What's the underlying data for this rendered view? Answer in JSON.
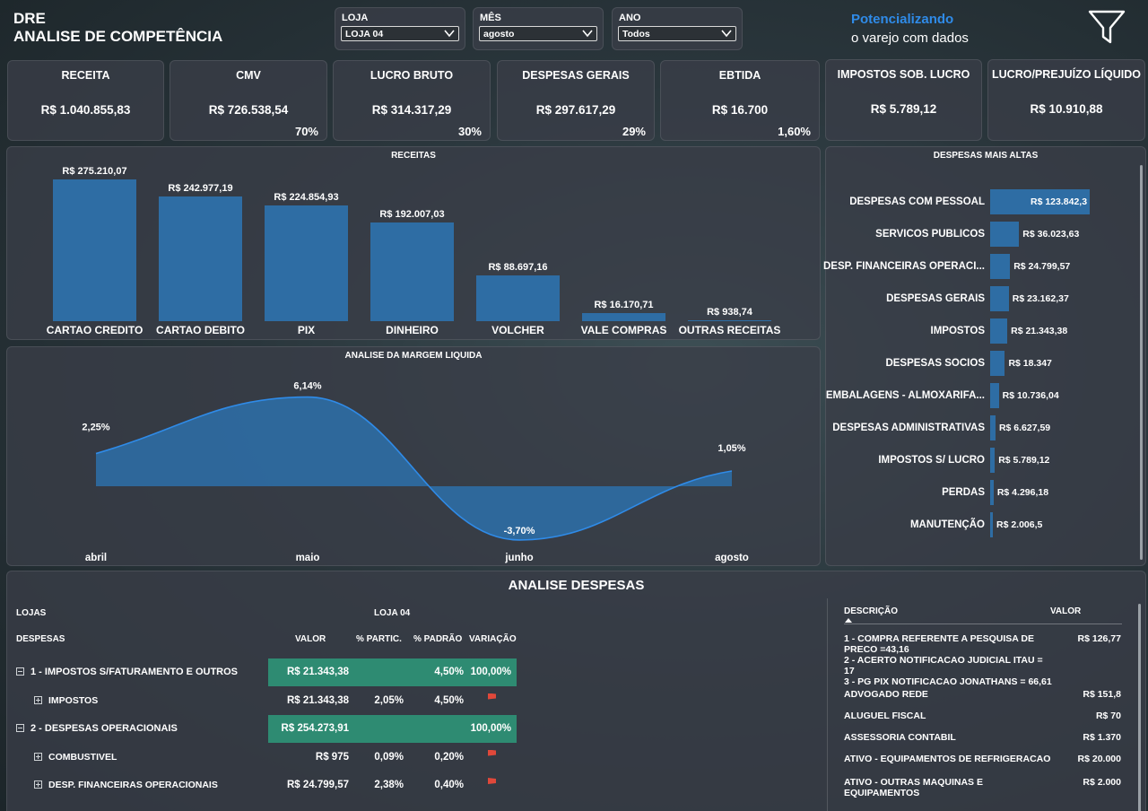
{
  "header": {
    "title_line1": "DRE",
    "title_line2": "ANALISE DE COMPETÊNCIA",
    "brand_line1": "Potencializando",
    "brand_line2": "o varejo com dados",
    "filter_icon": "filter-funnel-icon",
    "brand_color": "#2f8be8"
  },
  "slicers": [
    {
      "label": "LOJA",
      "value": "LOJA 04"
    },
    {
      "label": "MÊS",
      "value": "agosto"
    },
    {
      "label": "ANO",
      "value": "Todos"
    }
  ],
  "kpis": [
    {
      "label": "RECEITA",
      "value": "R$ 1.040.855,83",
      "pct": ""
    },
    {
      "label": "CMV",
      "value": "R$ 726.538,54",
      "pct": "70%"
    },
    {
      "label": "LUCRO BRUTO",
      "value": "R$ 314.317,29",
      "pct": "30%"
    },
    {
      "label": "DESPESAS GERAIS",
      "value": "R$ 297.617,29",
      "pct": "29%"
    },
    {
      "label": "EBTIDA",
      "value": "R$ 16.700",
      "pct": "1,60%"
    },
    {
      "label": "IMPOSTOS SOB. LUCRO",
      "value": "R$ 5.789,12",
      "pct": ""
    },
    {
      "label": "LUCRO/PREJUÍZO LÍQUIDO",
      "value": "R$ 10.910,88",
      "pct": ""
    }
  ],
  "receitas_chart": {
    "title": "RECEITAS",
    "chart_data": {
      "type": "bar",
      "categories": [
        "CARTAO CREDITO",
        "CARTAO DEBITO",
        "PIX",
        "DINHEIRO",
        "VOLCHER",
        "VALE COMPRAS",
        "OUTRAS RECEITAS"
      ],
      "values": [
        275210.07,
        242977.19,
        224854.93,
        192007.03,
        88697.16,
        16170.71,
        938.74
      ],
      "labels": [
        "R$ 275.210,07",
        "R$ 242.977,19",
        "R$ 224.854,93",
        "R$ 192.007,03",
        "R$ 88.697,16",
        "R$ 16.170,71",
        "R$ 938,74"
      ],
      "color": "#2e6da4"
    }
  },
  "margem_chart": {
    "title": "ANALISE DA MARGEM LIQUIDA",
    "chart_data": {
      "type": "area",
      "categories": [
        "abril",
        "maio",
        "junho",
        "agosto"
      ],
      "values": [
        2.25,
        6.14,
        -3.7,
        1.05
      ],
      "labels": [
        "2,25%",
        "6,14%",
        "-3,70%",
        "1,05%"
      ],
      "color": "#2e6da4",
      "line_color": "#2f8be8"
    }
  },
  "despesas_chart": {
    "title": "DESPESAS MAIS ALTAS",
    "chart_data": {
      "type": "bar",
      "orientation": "horizontal",
      "categories": [
        "DESPESAS COM PESSOAL",
        "SERVICOS PUBLICOS",
        "DESP. FINANCEIRAS OPERACI...",
        "DESPESAS GERAIS",
        "IMPOSTOS",
        "DESPESAS SOCIOS",
        "EMBALAGENS - ALMOXARIFA...",
        "DESPESAS ADMINISTRATIVAS",
        "IMPOSTOS S/ LUCRO",
        "PERDAS",
        "MANUTENÇÃO"
      ],
      "values": [
        123842.3,
        36023.63,
        24799.57,
        23162.37,
        21343.38,
        18347,
        10736.04,
        6627.59,
        5789.12,
        4296.18,
        2006.5
      ],
      "labels": [
        "R$ 123.842,3",
        "R$ 36.023,63",
        "R$ 24.799,57",
        "R$ 23.162,37",
        "R$ 21.343,38",
        "R$ 18.347",
        "R$ 10.736,04",
        "R$ 6.627,59",
        "R$ 5.789,12",
        "R$ 4.296,18",
        "R$ 2.006,5"
      ],
      "color": "#2e6da4"
    }
  },
  "analise": {
    "title": "ANALISE DESPESAS",
    "col_lojas": "LOJAS",
    "col_loja_value": "LOJA 04",
    "col_despesas": "DESPESAS",
    "headers": [
      "VALOR",
      "% PARTIC.",
      "% PADRÃO",
      "VARIAÇÃO"
    ],
    "rows": [
      {
        "label": "1 - IMPOSTOS S/FATURAMENTO E OUTROS",
        "valor": "R$ 21.343,38",
        "partic": "",
        "padrao": "4,50%",
        "variacao": "100,00%",
        "level": 0
      },
      {
        "label": "IMPOSTOS",
        "valor": "R$ 21.343,38",
        "partic": "2,05%",
        "padrao": "4,50%",
        "variacao": "",
        "level": 1
      },
      {
        "label": "2 - DESPESAS OPERACIONAIS",
        "valor": "R$ 254.273,91",
        "partic": "",
        "padrao": "",
        "variacao": "100,00%",
        "level": 0
      },
      {
        "label": "COMBUSTIVEL",
        "valor": "R$ 975",
        "partic": "0,09%",
        "padrao": "0,20%",
        "variacao": "",
        "level": 1
      },
      {
        "label": "DESP. FINANCEIRAS OPERACIONAIS",
        "valor": "R$ 24.799,57",
        "partic": "2,38%",
        "padrao": "0,40%",
        "variacao": "",
        "level": 1
      }
    ]
  },
  "descricao": {
    "col_desc": "DESCRIÇÃO",
    "col_valor": "VALOR",
    "rows": [
      {
        "desc": "1 - COMPRA REFERENTE A PESQUISA DE PRECO =43,16\n2 - ACERTO NOTIFICACAO JUDICIAL ITAU = 17\n3 - PG PIX NOTIFICACAO JONATHANS = 66,61",
        "valor": "R$ 126,77"
      },
      {
        "desc": "ADVOGADO REDE",
        "valor": "R$ 151,8"
      },
      {
        "desc": "ALUGUEL FISCAL",
        "valor": "R$ 70"
      },
      {
        "desc": "ASSESSORIA CONTABIL",
        "valor": "R$ 1.370"
      },
      {
        "desc": "ATIVO - EQUIPAMENTOS DE REFRIGERACAO",
        "valor": "R$ 20.000"
      },
      {
        "desc": "ATIVO - OUTRAS MAQUINAS E EQUIPAMENTOS",
        "valor": "R$ 2.000"
      }
    ]
  }
}
